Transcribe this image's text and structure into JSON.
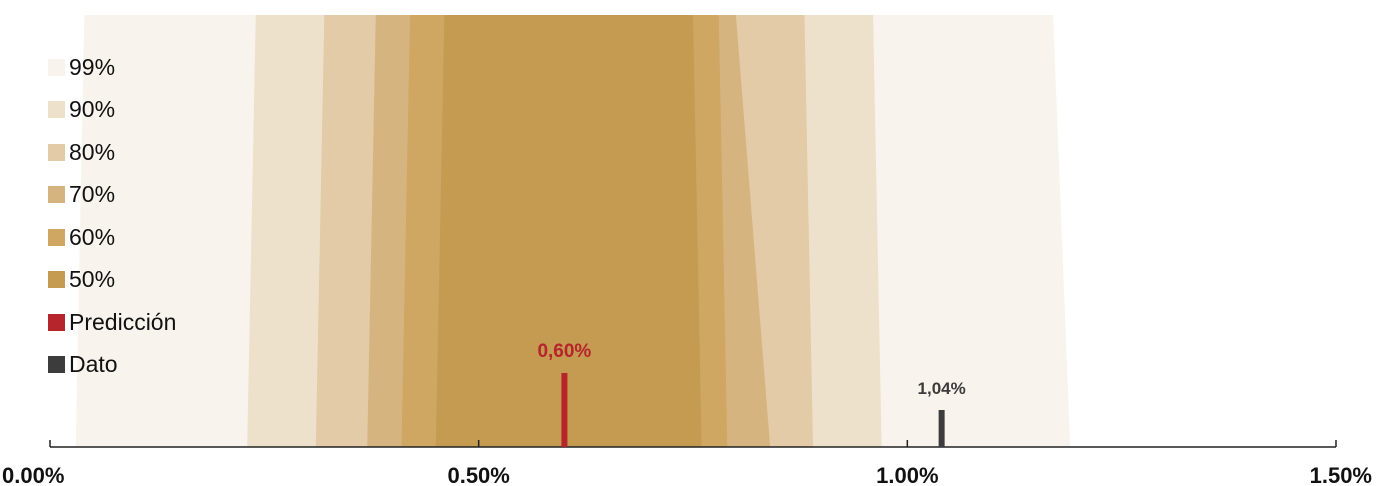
{
  "chart_data": {
    "type": "area",
    "title": "",
    "xlabel": "",
    "ylabel": "",
    "xlim": [
      0.0,
      1.5
    ],
    "x_ticks": [
      {
        "value": 0.0,
        "label": "0.00%"
      },
      {
        "value": 0.5,
        "label": "0.50%"
      },
      {
        "value": 1.0,
        "label": "1.00%"
      },
      {
        "value": 1.5,
        "label": "1.50%"
      }
    ],
    "fan_bands": [
      {
        "name": "99%",
        "color": "#f8f3ec",
        "lower": [
          0.04,
          0.03
        ],
        "upper": [
          1.17,
          1.19
        ]
      },
      {
        "name": "90%",
        "color": "#ede1cc",
        "lower": [
          0.24,
          0.23
        ],
        "upper": [
          0.96,
          0.97
        ]
      },
      {
        "name": "80%",
        "color": "#e2cba6",
        "lower": [
          0.32,
          0.31
        ],
        "upper": [
          0.88,
          0.89
        ]
      },
      {
        "name": "70%",
        "color": "#d6b47f",
        "lower": [
          0.38,
          0.37
        ],
        "upper": [
          0.8,
          0.84
        ]
      },
      {
        "name": "60%",
        "color": "#cfa662",
        "lower": [
          0.42,
          0.41
        ],
        "upper": [
          0.78,
          0.79
        ]
      },
      {
        "name": "50%",
        "color": "#c59b51",
        "lower": [
          0.46,
          0.45
        ],
        "upper": [
          0.75,
          0.76
        ]
      }
    ],
    "markers": [
      {
        "name": "Predicción",
        "value": 0.6,
        "label": "0,60%",
        "color": "#b5252b"
      },
      {
        "name": "Dato",
        "value": 1.04,
        "label": "1,04%",
        "color": "#3c3c3c"
      }
    ],
    "legend_position": "top-left",
    "grid": false
  },
  "legend": [
    {
      "label": "99%",
      "color": "#f8f3ec"
    },
    {
      "label": "90%",
      "color": "#ede1cc"
    },
    {
      "label": "80%",
      "color": "#e2cba6"
    },
    {
      "label": "70%",
      "color": "#d6b47f"
    },
    {
      "label": "60%",
      "color": "#cfa662"
    },
    {
      "label": "50%",
      "color": "#c59b51"
    },
    {
      "label": "Predicción",
      "color": "#b5252b"
    },
    {
      "label": "Dato",
      "color": "#3c3c3c"
    }
  ]
}
